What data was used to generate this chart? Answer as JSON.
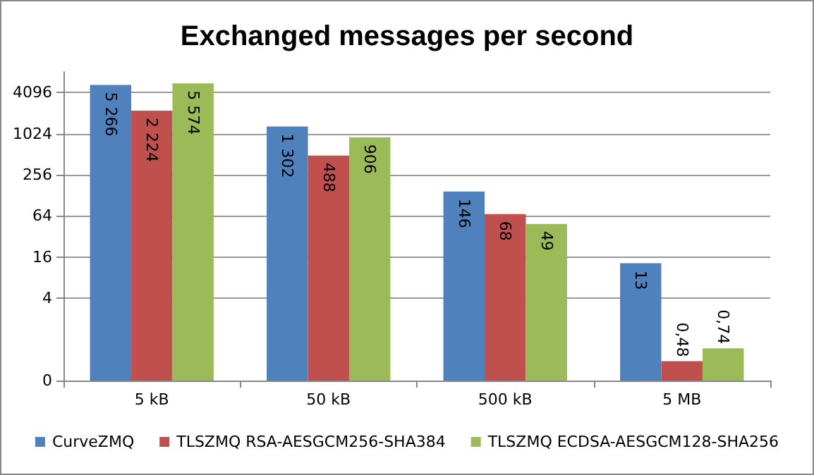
{
  "chart_data": {
    "type": "bar",
    "title": "Exchanged messages per second",
    "categories": [
      "5 kB",
      "50 kB",
      "500 kB",
      "5 MB"
    ],
    "series": [
      {
        "name": "CurveZMQ",
        "color": "#4f81bd",
        "values": [
          5266,
          1302,
          146,
          13
        ],
        "value_labels": [
          "5 266",
          "1 302",
          "146",
          "13"
        ]
      },
      {
        "name": "TLSZMQ RSA-AESGCM256-SHA384",
        "color": "#c0504d",
        "values": [
          2224,
          488,
          68,
          0.48
        ],
        "value_labels": [
          "2 224",
          "488",
          "68",
          "0,48"
        ]
      },
      {
        "name": "TLSZMQ ECDSA-AESGCM128-SHA256",
        "color": "#9bbb59",
        "values": [
          5574,
          906,
          49,
          0.74
        ],
        "value_labels": [
          "5 574",
          "906",
          "49",
          "0,74"
        ]
      }
    ],
    "log": true,
    "ylim": [
      0.25,
      8192
    ],
    "yticks": [
      {
        "value": 0.25,
        "label": "0"
      },
      4,
      16,
      64,
      256,
      1024,
      4096
    ],
    "grid": "y",
    "legend": "bottom"
  }
}
